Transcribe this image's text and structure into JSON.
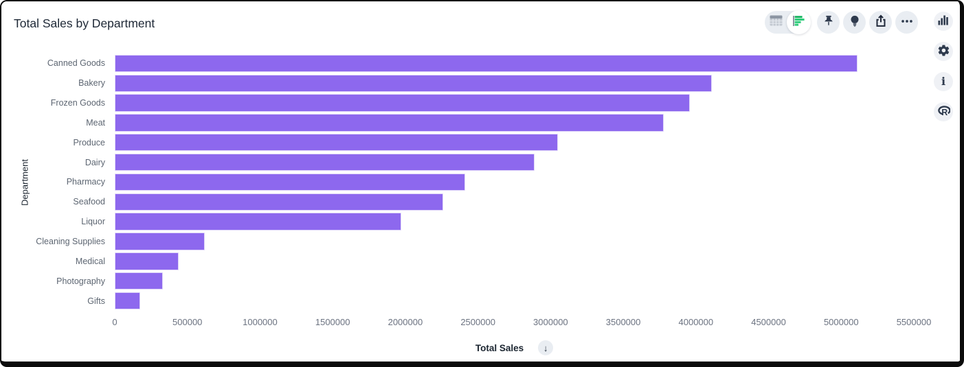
{
  "header": {
    "title": "Total Sales by Department"
  },
  "toolbar": {
    "view_toggle": {
      "options": [
        "table-view",
        "chart-view"
      ],
      "active": "chart-view",
      "table_icon": "table-grid-icon",
      "chart_icon": "horizontal-bar-chart-icon"
    },
    "buttons": [
      {
        "name": "pin",
        "icon": "pushpin-icon"
      },
      {
        "name": "insights",
        "icon": "lightbulb-icon"
      },
      {
        "name": "share",
        "icon": "share-export-icon"
      },
      {
        "name": "more-options",
        "icon": "ellipsis-icon"
      }
    ]
  },
  "sidebar": {
    "buttons": [
      {
        "name": "visualization",
        "icon": "bar-chart-icon"
      },
      {
        "name": "settings",
        "icon": "gear-icon"
      },
      {
        "name": "info",
        "icon": "info-icon",
        "glyph": "i"
      },
      {
        "name": "r-language",
        "icon": "r-logo-icon",
        "glyph": "R"
      }
    ]
  },
  "chart_data": {
    "type": "bar",
    "orientation": "horizontal",
    "title": "Total Sales by Department",
    "xlabel": "Total Sales",
    "ylabel": "Department",
    "categories": [
      "Canned Goods",
      "Bakery",
      "Frozen Goods",
      "Meat",
      "Produce",
      "Dairy",
      "Pharmacy",
      "Seafood",
      "Liquor",
      "Cleaning Supplies",
      "Medical",
      "Photography",
      "Gifts"
    ],
    "values": [
      5110000,
      4110000,
      3960000,
      3780000,
      3050000,
      2890000,
      2410000,
      2260000,
      1970000,
      620000,
      440000,
      330000,
      175000
    ],
    "xlim": [
      0,
      5500000
    ],
    "xticks": [
      0,
      500000,
      1000000,
      1500000,
      2000000,
      2500000,
      3000000,
      3500000,
      4000000,
      4500000,
      5000000,
      5500000
    ],
    "grid": false,
    "legend": null,
    "sort": "descending",
    "sort_icon": "↓"
  },
  "colors": {
    "bar": "#8d68ee",
    "bar_border": "#ded4f9",
    "icon": "#2e3a4d",
    "button_bg": "#e9edf2",
    "accent_green": "#1fbf6a",
    "title_text": "#1d2735",
    "label_text": "#5d6672"
  }
}
